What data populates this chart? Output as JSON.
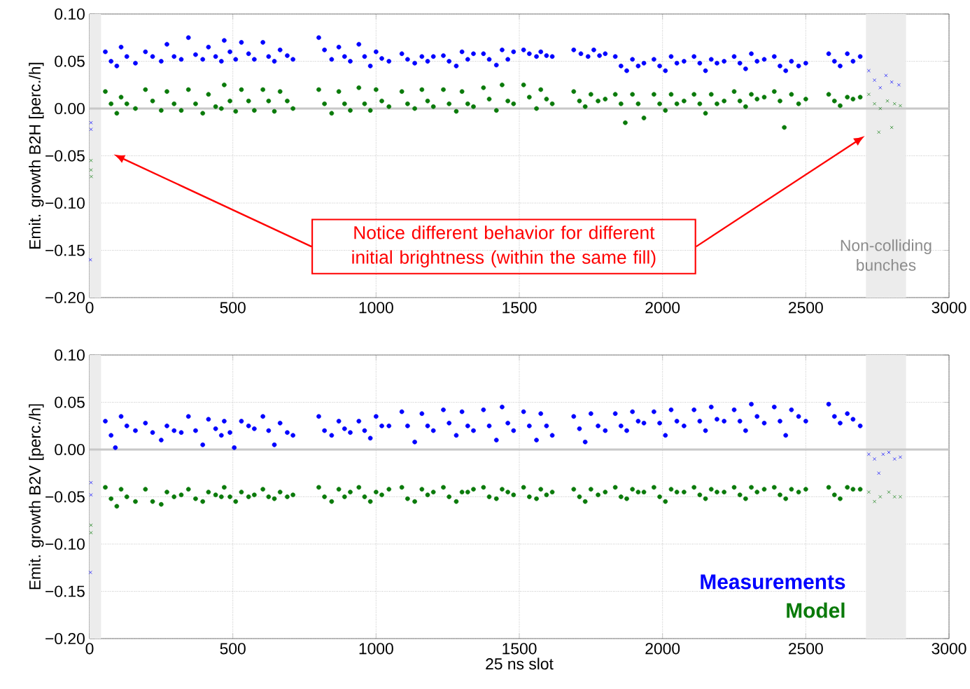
{
  "chart_data": [
    {
      "type": "scatter",
      "ylabel": "Emit. growth B2H [perc./h]",
      "xlim": [
        0,
        3000
      ],
      "ylim": [
        -0.2,
        0.1
      ],
      "xticks": [
        0,
        500,
        1000,
        1500,
        2000,
        2500,
        3000
      ],
      "yticks": [
        {
          "value": 0.1,
          "label": "0.10"
        },
        {
          "value": 0.05,
          "label": "0.05"
        },
        {
          "value": 0,
          "label": "0.00"
        },
        {
          "value": -0.05,
          "label": "−0.05"
        },
        {
          "value": -0.1,
          "label": "−0.10"
        },
        {
          "value": -0.15,
          "label": "−0.15"
        },
        {
          "value": -0.2,
          "label": "−0.20"
        }
      ],
      "grid": true,
      "bands": [
        {
          "axis": "x",
          "from": 0,
          "to": 40,
          "color": "#ececec"
        },
        {
          "axis": "x",
          "from": 2710,
          "to": 2850,
          "label": "Non-colliding bunches",
          "color": "#ececec"
        }
      ],
      "ref_lines": [
        {
          "axis": "y",
          "value": 0,
          "color": "#c8c8c8"
        }
      ],
      "annotations": [
        "Notice different behavior for different initial brightness (within the same fill)"
      ],
      "series": [
        {
          "color": "#0000ff",
          "marker": "circle",
          "x": [
            55,
            75,
            95,
            110,
            130,
            160,
            195,
            220,
            250,
            270,
            295,
            320,
            345,
            370,
            395,
            415,
            440,
            460,
            470,
            490,
            510,
            530,
            555,
            575,
            605,
            625,
            645,
            665,
            690,
            710,
            800,
            820,
            845,
            870,
            890,
            910,
            940,
            960,
            980,
            1000,
            1020,
            1045,
            1090,
            1110,
            1135,
            1160,
            1180,
            1200,
            1235,
            1255,
            1280,
            1300,
            1320,
            1340,
            1375,
            1395,
            1420,
            1440,
            1460,
            1480,
            1515,
            1535,
            1560,
            1575,
            1595,
            1615,
            1690,
            1715,
            1740,
            1760,
            1780,
            1800,
            1835,
            1855,
            1875,
            1895,
            1915,
            1935,
            1970,
            1990,
            2010,
            2030,
            2050,
            2075,
            2110,
            2130,
            2150,
            2170,
            2190,
            2215,
            2250,
            2270,
            2290,
            2310,
            2330,
            2355,
            2390,
            2410,
            2430,
            2450,
            2475,
            2500,
            2580,
            2600,
            2620,
            2645,
            2665,
            2690
          ],
          "values": [
            0.06,
            0.05,
            0.045,
            0.065,
            0.055,
            0.048,
            0.06,
            0.055,
            0.05,
            0.068,
            0.055,
            0.052,
            0.075,
            0.057,
            0.052,
            0.065,
            0.055,
            0.05,
            0.072,
            0.06,
            0.052,
            0.07,
            0.058,
            0.052,
            0.07,
            0.055,
            0.05,
            0.062,
            0.056,
            0.052,
            0.075,
            0.062,
            0.052,
            0.065,
            0.055,
            0.05,
            0.068,
            0.055,
            0.045,
            0.06,
            0.053,
            0.05,
            0.058,
            0.052,
            0.048,
            0.055,
            0.05,
            0.055,
            0.056,
            0.05,
            0.045,
            0.06,
            0.052,
            0.058,
            0.058,
            0.052,
            0.046,
            0.062,
            0.052,
            0.06,
            0.062,
            0.058,
            0.055,
            0.06,
            0.056,
            0.055,
            0.062,
            0.058,
            0.055,
            0.062,
            0.056,
            0.058,
            0.055,
            0.045,
            0.04,
            0.052,
            0.045,
            0.048,
            0.052,
            0.045,
            0.04,
            0.055,
            0.048,
            0.05,
            0.055,
            0.048,
            0.04,
            0.052,
            0.048,
            0.05,
            0.055,
            0.048,
            0.042,
            0.058,
            0.05,
            0.052,
            0.055,
            0.045,
            0.04,
            0.05,
            0.045,
            0.048,
            0.058,
            0.05,
            0.045,
            0.058,
            0.05,
            0.055
          ]
        },
        {
          "color": "#0a7a0a",
          "marker": "circle",
          "x": [
            55,
            75,
            95,
            110,
            130,
            160,
            195,
            220,
            250,
            270,
            295,
            320,
            345,
            370,
            395,
            415,
            440,
            460,
            470,
            490,
            510,
            530,
            555,
            575,
            605,
            625,
            645,
            665,
            690,
            710,
            800,
            820,
            845,
            870,
            890,
            910,
            940,
            960,
            980,
            1000,
            1020,
            1045,
            1090,
            1110,
            1135,
            1160,
            1180,
            1200,
            1235,
            1255,
            1280,
            1300,
            1320,
            1340,
            1375,
            1395,
            1420,
            1440,
            1460,
            1480,
            1515,
            1535,
            1560,
            1575,
            1595,
            1615,
            1690,
            1710,
            1730,
            1750,
            1775,
            1800,
            1835,
            1855,
            1870,
            1895,
            1915,
            1935,
            1970,
            1990,
            2010,
            2030,
            2050,
            2075,
            2110,
            2130,
            2150,
            2170,
            2190,
            2215,
            2250,
            2270,
            2290,
            2310,
            2330,
            2355,
            2390,
            2410,
            2425,
            2450,
            2475,
            2500,
            2580,
            2600,
            2620,
            2645,
            2665,
            2690
          ],
          "values": [
            0.018,
            0.005,
            -0.005,
            0.012,
            0.005,
            0,
            0.02,
            0.008,
            -0.002,
            0.018,
            0.005,
            -0.002,
            0.02,
            0.005,
            -0.005,
            0.015,
            0.002,
            0,
            0.025,
            0.008,
            -0.003,
            0.02,
            0.008,
            -0.002,
            0.02,
            0.008,
            -0.003,
            0.018,
            0.008,
            0,
            0.02,
            0.005,
            -0.005,
            0.018,
            0.005,
            -0.002,
            0.022,
            0.005,
            -0.002,
            0.02,
            0.008,
            0.002,
            0.018,
            0.005,
            0,
            0.02,
            0.008,
            0.002,
            0.02,
            0.005,
            -0.003,
            0.018,
            0.005,
            0.002,
            0.022,
            0.01,
            -0.002,
            0.025,
            0.008,
            0.005,
            0.025,
            0.012,
            0,
            0.02,
            0.01,
            0.005,
            0.018,
            0.008,
            0.002,
            0.015,
            0.008,
            0.01,
            0.015,
            0.005,
            -0.015,
            0.015,
            0.005,
            -0.01,
            0.015,
            0.005,
            -0.002,
            0.015,
            0.005,
            0.008,
            0.015,
            0.005,
            -0.005,
            0.015,
            0.005,
            0.008,
            0.018,
            0.008,
            0.002,
            0.015,
            0.01,
            0.012,
            0.018,
            0.008,
            -0.02,
            0.015,
            0.005,
            0.01,
            0.015,
            0.008,
            0.003,
            0.012,
            0.01,
            0.012
          ]
        },
        {
          "color": "#0000ff",
          "marker": "cross",
          "x": [
            5,
            5,
            3,
            2720,
            2740,
            2760,
            2780,
            2800,
            2825
          ],
          "values": [
            -0.015,
            -0.022,
            -0.16,
            0.04,
            0.03,
            0.022,
            0.035,
            0.028,
            0.025
          ]
        },
        {
          "color": "#0a7a0a",
          "marker": "cross",
          "x": [
            5,
            5,
            6,
            2720,
            2740,
            2760,
            2785,
            2810,
            2830,
            2755,
            2800
          ],
          "values": [
            -0.055,
            -0.065,
            -0.072,
            0.015,
            0.005,
            0,
            0.008,
            0.005,
            0.003,
            -0.025,
            -0.02
          ]
        }
      ]
    },
    {
      "type": "scatter",
      "xlabel": "25 ns slot",
      "ylabel": "Emit. growth B2V [perc./h]",
      "xlim": [
        0,
        3000
      ],
      "ylim": [
        -0.2,
        0.1
      ],
      "xticks": [
        0,
        500,
        1000,
        1500,
        2000,
        2500,
        3000
      ],
      "yticks": [
        {
          "value": 0.1,
          "label": "0.10"
        },
        {
          "value": 0.05,
          "label": "0.05"
        },
        {
          "value": 0,
          "label": "0.00"
        },
        {
          "value": -0.05,
          "label": "−0.05"
        },
        {
          "value": -0.1,
          "label": "−0.10"
        },
        {
          "value": -0.15,
          "label": "−0.15"
        },
        {
          "value": -0.2,
          "label": "−0.20"
        }
      ],
      "grid": true,
      "legend": "bottom right",
      "bands": [
        {
          "axis": "x",
          "from": 0,
          "to": 40,
          "color": "#ececec"
        },
        {
          "axis": "x",
          "from": 2710,
          "to": 2850,
          "color": "#ececec"
        }
      ],
      "ref_lines": [
        {
          "axis": "y",
          "value": 0,
          "color": "#c8c8c8"
        }
      ],
      "series": [
        {
          "name": "Measurements",
          "color": "#0000ff",
          "marker": "circle",
          "x": [
            55,
            75,
            90,
            110,
            130,
            160,
            195,
            220,
            250,
            270,
            295,
            320,
            345,
            370,
            395,
            415,
            440,
            460,
            470,
            490,
            505,
            530,
            555,
            575,
            605,
            625,
            645,
            665,
            690,
            710,
            800,
            820,
            845,
            870,
            890,
            910,
            940,
            960,
            980,
            1000,
            1020,
            1045,
            1090,
            1110,
            1135,
            1160,
            1180,
            1200,
            1235,
            1255,
            1280,
            1300,
            1320,
            1340,
            1375,
            1395,
            1420,
            1440,
            1460,
            1480,
            1515,
            1535,
            1560,
            1575,
            1595,
            1615,
            1690,
            1710,
            1730,
            1750,
            1775,
            1800,
            1835,
            1855,
            1875,
            1895,
            1915,
            1935,
            1970,
            1990,
            2010,
            2030,
            2050,
            2075,
            2110,
            2130,
            2150,
            2170,
            2190,
            2215,
            2250,
            2270,
            2290,
            2310,
            2330,
            2355,
            2390,
            2410,
            2430,
            2450,
            2475,
            2500,
            2580,
            2600,
            2620,
            2645,
            2665,
            2690
          ],
          "values": [
            0.03,
            0.015,
            0.002,
            0.035,
            0.025,
            0.02,
            0.028,
            0.018,
            0.01,
            0.025,
            0.02,
            0.018,
            0.035,
            0.02,
            0.005,
            0.032,
            0.022,
            0.015,
            0.03,
            0.018,
            0.002,
            0.03,
            0.025,
            0.022,
            0.035,
            0.02,
            0.005,
            0.028,
            0.018,
            0.015,
            0.035,
            0.02,
            0.015,
            0.03,
            0.022,
            0.018,
            0.03,
            0.02,
            0.012,
            0.035,
            0.025,
            0.025,
            0.04,
            0.025,
            0.008,
            0.038,
            0.025,
            0.02,
            0.042,
            0.028,
            0.015,
            0.04,
            0.025,
            0.02,
            0.042,
            0.025,
            0.01,
            0.045,
            0.028,
            0.02,
            0.04,
            0.025,
            0.01,
            0.038,
            0.025,
            0.015,
            0.035,
            0.022,
            0.008,
            0.038,
            0.025,
            0.02,
            0.038,
            0.025,
            0.02,
            0.04,
            0.03,
            0.028,
            0.04,
            0.028,
            0.015,
            0.042,
            0.03,
            0.025,
            0.042,
            0.03,
            0.02,
            0.045,
            0.032,
            0.03,
            0.042,
            0.03,
            0.02,
            0.048,
            0.035,
            0.028,
            0.045,
            0.03,
            0.015,
            0.042,
            0.035,
            0.03,
            0.048,
            0.035,
            0.028,
            0.038,
            0.032,
            0.025
          ]
        },
        {
          "name": "Model",
          "color": "#0a7a0a",
          "marker": "circle",
          "x": [
            55,
            75,
            95,
            110,
            130,
            160,
            195,
            220,
            250,
            270,
            295,
            320,
            345,
            370,
            395,
            415,
            440,
            460,
            470,
            490,
            510,
            530,
            555,
            575,
            605,
            625,
            645,
            665,
            690,
            710,
            800,
            820,
            845,
            870,
            890,
            910,
            940,
            960,
            980,
            1000,
            1020,
            1045,
            1090,
            1110,
            1135,
            1160,
            1180,
            1200,
            1235,
            1255,
            1280,
            1300,
            1320,
            1340,
            1375,
            1395,
            1420,
            1440,
            1460,
            1480,
            1515,
            1535,
            1560,
            1575,
            1595,
            1615,
            1690,
            1710,
            1730,
            1750,
            1775,
            1800,
            1835,
            1855,
            1875,
            1895,
            1915,
            1935,
            1970,
            1990,
            2010,
            2030,
            2050,
            2075,
            2110,
            2130,
            2150,
            2170,
            2190,
            2215,
            2250,
            2270,
            2290,
            2310,
            2330,
            2355,
            2390,
            2410,
            2430,
            2450,
            2475,
            2500,
            2580,
            2600,
            2620,
            2645,
            2665,
            2690
          ],
          "values": [
            -0.04,
            -0.052,
            -0.06,
            -0.042,
            -0.05,
            -0.055,
            -0.042,
            -0.055,
            -0.058,
            -0.045,
            -0.05,
            -0.048,
            -0.042,
            -0.052,
            -0.055,
            -0.045,
            -0.048,
            -0.05,
            -0.04,
            -0.05,
            -0.055,
            -0.045,
            -0.05,
            -0.048,
            -0.042,
            -0.05,
            -0.052,
            -0.045,
            -0.05,
            -0.048,
            -0.04,
            -0.05,
            -0.055,
            -0.042,
            -0.05,
            -0.045,
            -0.04,
            -0.05,
            -0.055,
            -0.045,
            -0.048,
            -0.042,
            -0.04,
            -0.052,
            -0.055,
            -0.042,
            -0.048,
            -0.045,
            -0.04,
            -0.05,
            -0.055,
            -0.045,
            -0.045,
            -0.042,
            -0.04,
            -0.05,
            -0.052,
            -0.042,
            -0.045,
            -0.048,
            -0.04,
            -0.05,
            -0.052,
            -0.042,
            -0.048,
            -0.045,
            -0.042,
            -0.05,
            -0.055,
            -0.042,
            -0.048,
            -0.045,
            -0.04,
            -0.05,
            -0.052,
            -0.042,
            -0.045,
            -0.045,
            -0.04,
            -0.05,
            -0.055,
            -0.042,
            -0.045,
            -0.045,
            -0.04,
            -0.048,
            -0.052,
            -0.042,
            -0.045,
            -0.045,
            -0.04,
            -0.048,
            -0.052,
            -0.04,
            -0.045,
            -0.042,
            -0.04,
            -0.048,
            -0.052,
            -0.042,
            -0.045,
            -0.042,
            -0.04,
            -0.048,
            -0.052,
            -0.04,
            -0.042,
            -0.042
          ]
        },
        {
          "color": "#0000ff",
          "marker": "cross",
          "x": [
            5,
            5,
            3,
            2720,
            2740,
            2755,
            2770,
            2790,
            2810,
            2830
          ],
          "values": [
            -0.035,
            -0.048,
            -0.13,
            -0.005,
            -0.01,
            -0.025,
            -0.005,
            -0.003,
            -0.01,
            -0.008
          ]
        },
        {
          "color": "#0a7a0a",
          "marker": "cross",
          "x": [
            5,
            5,
            2720,
            2740,
            2760,
            2790,
            2810,
            2830
          ],
          "values": [
            -0.08,
            -0.088,
            -0.045,
            -0.055,
            -0.05,
            -0.045,
            -0.05,
            -0.05
          ]
        }
      ]
    }
  ]
}
